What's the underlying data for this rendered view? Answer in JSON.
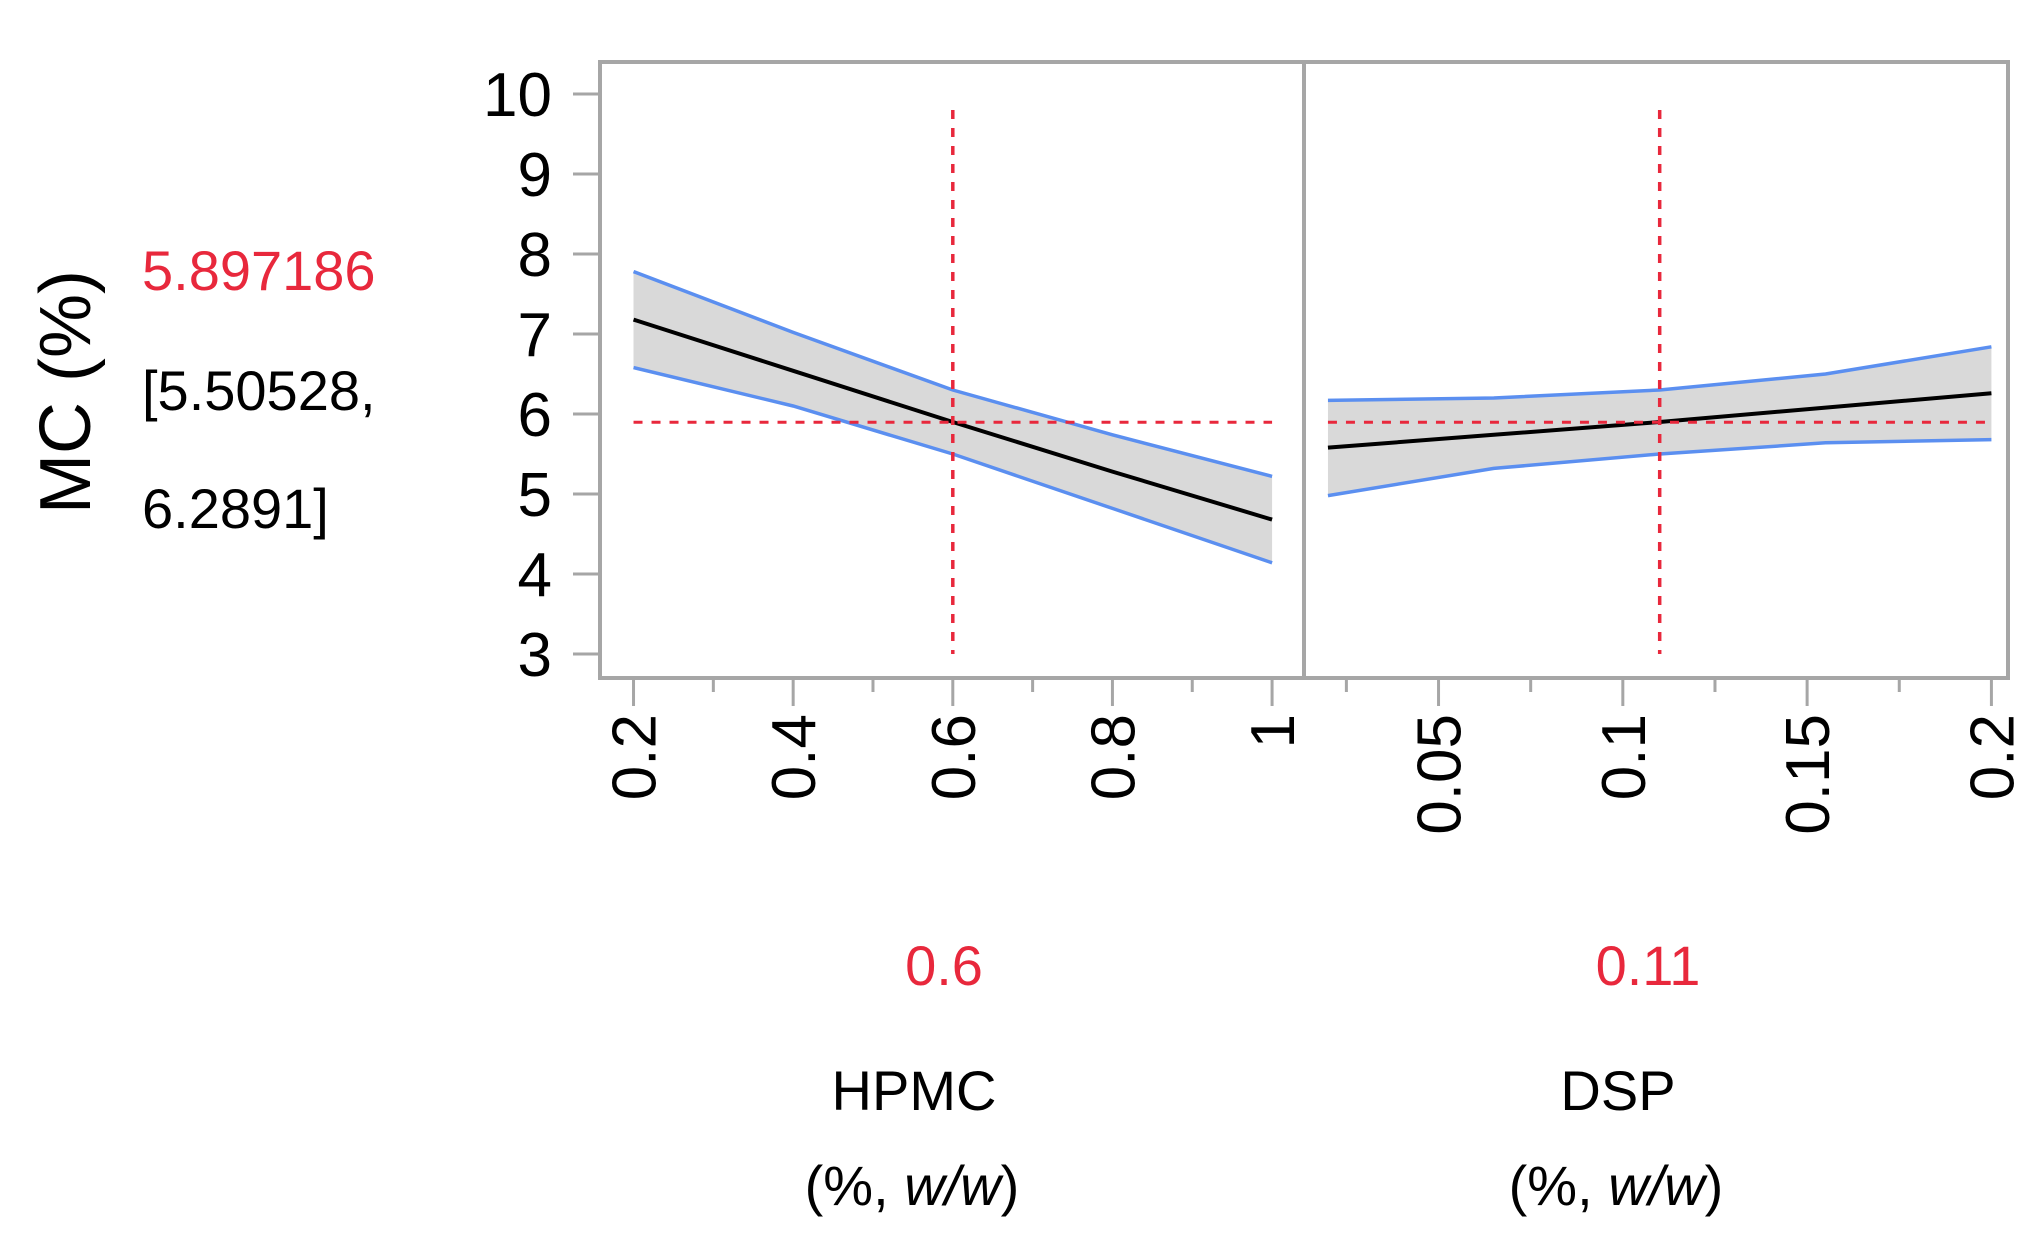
{
  "colors": {
    "frame": "#a6a6a6",
    "band_fill": "#d9d9d9",
    "band_edge": "#5b8ff0",
    "fit_line": "#000000",
    "reference": "#e8283c",
    "prediction_text": "#e8283c"
  },
  "chart_data": {
    "type": "line",
    "title": "",
    "ylabel": "MC (%)",
    "ylim": [
      2.7,
      10.4
    ],
    "yticks": [
      "3",
      "4",
      "5",
      "6",
      "7",
      "8",
      "9",
      "10"
    ],
    "prediction": {
      "value": "5.897186",
      "ci_lower": "[5.50528,",
      "ci_upper": "6.2891]",
      "y": 5.897186
    },
    "panels": [
      {
        "factor": "HPMC",
        "unit_prefix": "(%, ",
        "unit_italic": "w/w",
        "unit_suffix": ")",
        "current_value": "0.6",
        "current_x": 0.6,
        "xlim": [
          0.158,
          1.04
        ],
        "xticks": [
          "0.2",
          "0.4",
          "0.6",
          "0.8",
          "1"
        ],
        "xtick_values": [
          0.2,
          0.4,
          0.6,
          0.8,
          1.0
        ],
        "minor_ticks": [
          0.3,
          0.5,
          0.7,
          0.9
        ],
        "x": [
          0.2,
          0.4,
          0.6,
          0.8,
          1.0
        ],
        "fit": [
          7.18,
          6.54,
          5.9,
          5.28,
          4.68
        ],
        "upper": [
          7.78,
          7.02,
          6.3,
          5.74,
          5.22
        ],
        "lower": [
          6.58,
          6.1,
          5.5,
          4.82,
          4.14
        ]
      },
      {
        "factor": "DSP",
        "unit_prefix": "(%, ",
        "unit_italic": "w/w",
        "unit_suffix": ")",
        "current_value": "0.11",
        "current_x": 0.11,
        "xlim": [
          0.0135,
          0.2045
        ],
        "xticks": [
          "0.05",
          "0.1",
          "0.15",
          "0.2"
        ],
        "xtick_values": [
          0.05,
          0.1,
          0.15,
          0.2
        ],
        "minor_ticks": [
          0.025,
          0.075,
          0.125,
          0.175
        ],
        "x": [
          0.02,
          0.065,
          0.11,
          0.155,
          0.2
        ],
        "fit": [
          5.58,
          5.74,
          5.9,
          6.08,
          6.26
        ],
        "upper": [
          6.17,
          6.2,
          6.3,
          6.5,
          6.84
        ],
        "lower": [
          4.98,
          5.32,
          5.5,
          5.64,
          5.68
        ]
      }
    ]
  }
}
